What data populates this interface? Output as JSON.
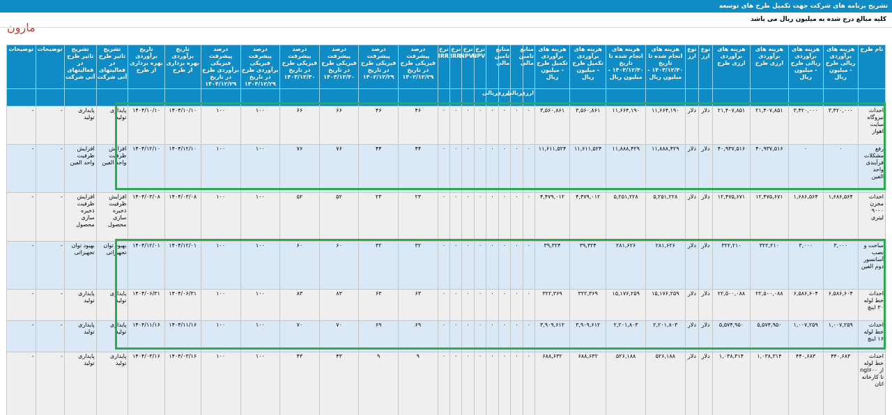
{
  "header": {
    "title": "تشریح برنامه های شرکت جهت تکمیل طرح های توسعه",
    "subtitle": "کلیه مبالغ درج شده به میلیون ریال می باشد",
    "company": "مارون"
  },
  "table": {
    "columns": [
      "نام طرح",
      "هزینه های برآوردی ریالی طرح - میلیون ریال",
      "هزینه های برآوردی ریالی طرح - میلیون ریال",
      "هزینه های برآوردی ارزی طرح",
      "هزینه های برآوردی ارزی طرح",
      "نوع ارز",
      "نوع ارز",
      "هزینه های انجام شده تا تاریخ ۱۴۰۳/۱۲/۳۰ - میلیون ریال",
      "هزینه های انجام شده تا تاریخ ۱۴۰۳/۱۲/۳۰ - میلیون ریال",
      "هزینه های برآوردی تکمیل طرح - میلیون ریال",
      "هزینه های برآوردی تکمیل طرح - میلیون ریال",
      "منابع تامین مالی",
      "",
      "منابع تامین مالی",
      "",
      "نرخ NPV",
      "نرخ NPV",
      "نرخ IRR",
      "نرخ IRR",
      "درصد پیشرفت فیزیکی طرح در تاریخ ۱۴۰۲/۱۲/۲۹",
      "درصد پیشرفت فیزیکی طرح در تاریخ ۱۴۰۲/۱۲/۲۹",
      "درصد پیشرفت فیزیکی طرح در تاریخ ۱۴۰۳/۱۲/۳۰",
      "درصد پیشرفت فیزیکی طرح در تاریخ ۱۴۰۳/۱۲/۳۰",
      "درصد پیشرفت فیزیکی برآوردی طرح در تاریخ ۱۴۰۴/۱۲/۲۹",
      "درصد پیشرفت فیزیکی برآوردی طرح در تاریخ ۱۴۰۴/۱۲/۲۹",
      "تاریخ برآوردی بهره برداری از طرح",
      "تاریخ برآوردی بهره برداری از طرح",
      "تشریح تاثیر طرح در فعالیتهای آتی شرکت",
      "تشریح تاثیر طرح در فعالیتهای آتی شرکت",
      "توضیحات",
      "توضیحات"
    ],
    "subheaders": [
      "ارزی",
      "ریالی",
      "ارزی",
      "ریالی"
    ],
    "rows": [
      {
        "style": "g",
        "cells": [
          "احداث نیروگاه سایت اهواز",
          "۳,۴۲۰,۰۰۰",
          "۳,۴۲۰,۰۰۰",
          "۲۱,۴۰۷,۸۵۱",
          "۲۱,۴۰۷,۸۵۱",
          "دلار",
          "دلار",
          "۱۱,۶۶۴,۱۹۰",
          "۱۱,۶۶۴,۱۹۰",
          "۳,۵۶۰,۸۶۱",
          "۳,۵۶۰,۸۶۱",
          "۰",
          "۰",
          "۰",
          "۰",
          "۰",
          "۰",
          "۰",
          "۰",
          "۴۶",
          "۴۶",
          "۶۶",
          "۶۶",
          "۱۰۰",
          "۱۰۰",
          "۱۴۰۴/۱۰/۱۰",
          "۱۴۰۴/۱۰/۱۰",
          "پایداری تولید",
          "پایداری تولید",
          "-",
          "-"
        ]
      },
      {
        "style": "b",
        "cells": [
          "رفع مشکلات فرآیندی واحد الفین",
          "۰",
          "۰",
          "۴۰,۹۳۷,۵۱۶",
          "۴۰,۹۳۷,۵۱۶",
          "دلار",
          "دلار",
          "۱۱,۸۸۸,۴۲۹",
          "۱۱,۸۸۸,۴۲۹",
          "۱۱,۶۱۱,۵۲۴",
          "۱۱,۶۱۱,۵۲۴",
          "۰",
          "۰",
          "۰",
          "۰",
          "۰",
          "۰",
          "۰",
          "۰",
          "۴۴",
          "۴۴",
          "۷۶",
          "۷۶",
          "۱۰۰",
          "۱۰۰",
          "۱۴۰۴/۱۲/۱۰",
          "۱۴۰۴/۱۲/۱۰",
          "افزایش ظرفیت واحد الفین",
          "افزایش ظرفیت واحد الفین",
          "-",
          "-"
        ]
      },
      {
        "style": "g",
        "cells": [
          "احداث مخزن ۹۰۰۰ لیتری",
          "۱,۶۸۶,۵۶۴",
          "۱,۶۸۶,۵۶۴",
          "۱۲,۴۷۵,۶۷۱",
          "۱۲,۴۷۵,۶۷۱",
          "دلار",
          "دلار",
          "۵,۲۵۱,۲۲۸",
          "۵,۲۵۱,۲۲۸",
          "۴,۴۷۹,۰۱۲",
          "۴,۴۷۹,۰۱۲",
          "۰",
          "۰",
          "۰",
          "۰",
          "۰",
          "۰",
          "۰",
          "۰",
          "۲۳",
          "۲۳",
          "۵۲",
          "۵۲",
          "۱۰۰",
          "۱۰۰",
          "۱۴۰۴/۰۳/۰۸",
          "۱۴۰۴/۰۳/۰۸",
          "افزایش ظرفیت ذخیره سازی محصول",
          "افزایش ظرفیت ذخیره سازی محصول",
          "-",
          "-"
        ]
      },
      {
        "style": "b",
        "cells": [
          "ساخت و نصب آسانسور دوم الفین",
          "۳,۰۰۰",
          "۳,۰۰۰",
          "۳۲۲,۲۱۰",
          "۳۲۲,۲۱۰",
          "دلار",
          "دلار",
          "۲۸۱,۶۲۶",
          "۲۸۱,۶۲۶",
          "۳۹,۳۲۴",
          "۳۹,۳۲۴",
          "۰",
          "۰",
          "۰",
          "۰",
          "۰",
          "۰",
          "۰",
          "۰",
          "۳۲",
          "۳۲",
          "۶۰",
          "۶۰",
          "۱۰۰",
          "۱۰۰",
          "۱۴۰۴/۱۲/۰۱",
          "۱۴۰۴/۱۲/۰۱",
          "بهبود توان تجهیزاتی",
          "بهبود توان تجهیزاتی",
          "-",
          "-"
        ]
      },
      {
        "style": "g",
        "cells": [
          "احداث خط لوله ۳۰ اینچ",
          "۶,۵۸۶,۶۰۴",
          "۶,۵۸۶,۶۰۴",
          "۲۲,۵۰۰,۰۸۸",
          "۲۲,۵۰۰,۰۸۸",
          "دلار",
          "دلار",
          "۱۵,۱۷۶,۲۵۹",
          "۱۵,۱۷۶,۲۵۹",
          "۳۲۲,۳۶۹",
          "۳۲۲,۳۶۹",
          "۰",
          "۰",
          "۰",
          "۰",
          "۰",
          "۰",
          "۰",
          "۰",
          "۶۳",
          "۶۳",
          "۸۳",
          "۸۳",
          "۱۰۰",
          "۱۰۰",
          "۱۴۰۴/۰۶/۳۱",
          "۱۴۰۴/۰۶/۳۱",
          "پایداری تولید",
          "پایداری تولید",
          "-",
          "-"
        ]
      },
      {
        "style": "b",
        "cells": [
          "احداث خط لوله ۱۶ اینچ",
          "۱,۰۰۷,۲۵۹",
          "۱,۰۰۷,۲۵۹",
          "۵,۵۷۴,۹۵۰",
          "۵,۵۷۴,۹۵۰",
          "دلار",
          "دلار",
          "۲,۲۰۱,۸۰۳",
          "۲,۲۰۱,۸۰۳",
          "۳,۹۰۹,۶۱۲",
          "۳,۹۰۹,۶۱۲",
          "۰",
          "۰",
          "۰",
          "۰",
          "۰",
          "۰",
          "۰",
          "۰",
          "۶۹",
          "۶۹",
          "۷۰",
          "۷۰",
          "۱۰۰",
          "۱۰۰",
          "۱۴۰۴/۱۱/۱۶",
          "۱۴۰۴/۱۱/۱۶",
          "پایداری تولید",
          "پایداری تولید",
          "-",
          "-"
        ]
      },
      {
        "style": "g",
        "cells": [
          "احداث خط لوله از ngl۶۰۰ تا کارخانه اتان",
          "۴۴۰,۶۸۳",
          "۴۴۰,۶۸۳",
          "۱,۰۳۸,۳۱۴",
          "۱,۰۳۸,۳۱۴",
          "دلار",
          "دلار",
          "۵۲۶,۱۸۸",
          "۵۲۶,۱۸۸",
          "۶۸۸,۶۳۲",
          "۶۸۸,۶۳۲",
          "۰",
          "۰",
          "۰",
          "۰",
          "۰",
          "۰",
          "۰",
          "۰",
          "۹",
          "۹",
          "۴۳",
          "۴۳",
          "۱۰۰",
          "۱۰۰",
          "۱۴۰۴/۰۳/۱۶",
          "۱۴۰۴/۰۳/۱۶",
          "پایداری تولید",
          "پایداری تولید",
          "-",
          "-"
        ]
      }
    ]
  },
  "colors": {
    "header_blue": "#0f8bc6",
    "row_gray": "#efefef",
    "row_blue": "#dbe9f7",
    "highlight_green": "#2cab4e",
    "brand_red": "#c0392b"
  }
}
